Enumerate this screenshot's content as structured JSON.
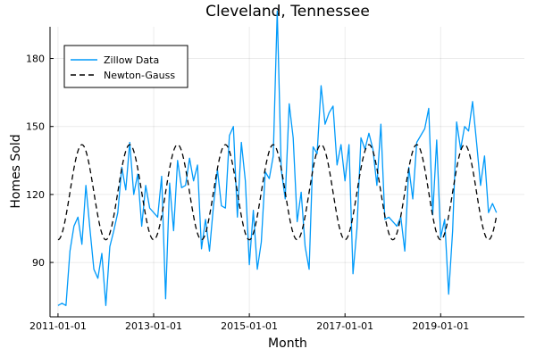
{
  "chart_data": {
    "type": "line",
    "title": "Cleveland, Tennessee",
    "xlabel": "Month",
    "ylabel": "Homes Sold",
    "x_start": "2011-01-01",
    "x_step": "1 month",
    "xlim": [
      "2010-11-01",
      "2020-10-01"
    ],
    "ylim": [
      66,
      194
    ],
    "xticks": [
      "2011-01-01",
      "2013-01-01",
      "2015-01-01",
      "2017-01-01",
      "2019-01-01"
    ],
    "yticks": [
      90,
      120,
      150,
      180
    ],
    "grid": true,
    "legend_position": "top-left",
    "series": [
      {
        "name": "Zillow Data",
        "color": "#009AFA",
        "style": "solid",
        "values": [
          71,
          72,
          71,
          95,
          106,
          110,
          98,
          124,
          105,
          87,
          83,
          94,
          71,
          97,
          104,
          112,
          132,
          122,
          143,
          120,
          129,
          106,
          124,
          114,
          112,
          110,
          128,
          74,
          125,
          104,
          135,
          123,
          124,
          136,
          126,
          133,
          96,
          109,
          95,
          115,
          131,
          115,
          114,
          146,
          150,
          110,
          143,
          126,
          89,
          113,
          87,
          99,
          130,
          127,
          137,
          201,
          131,
          118,
          160,
          145,
          108,
          121,
          97,
          87,
          141,
          138,
          168,
          151,
          156,
          159,
          133,
          142,
          126,
          142,
          85,
          105,
          145,
          140,
          147,
          140,
          124,
          151,
          109,
          110,
          108,
          106,
          110,
          95,
          132,
          118,
          143,
          146,
          149,
          158,
          111,
          144,
          101,
          109,
          76,
          104,
          152,
          140,
          150,
          148,
          161,
          143,
          124,
          137,
          112,
          116,
          112
        ]
      },
      {
        "name": "Newton-Gauss",
        "color": "#000000",
        "style": "dashed",
        "amplitude": 21,
        "offset": 121,
        "period_months": 12,
        "peak_month_offset": 6
      }
    ]
  }
}
